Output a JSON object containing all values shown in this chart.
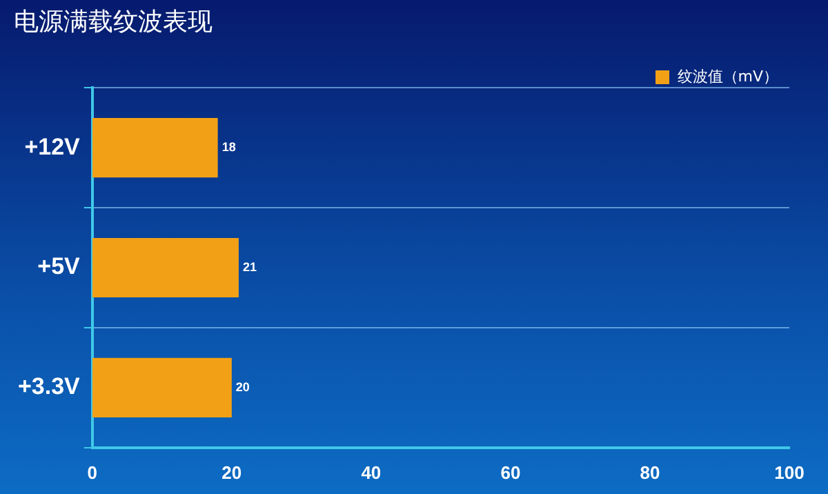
{
  "chart_data": {
    "type": "bar",
    "title": "电源满载纹波表现",
    "orientation": "horizontal",
    "categories": [
      "+12V",
      "+5V",
      "+3.3V"
    ],
    "series": [
      {
        "name": "纹波值（mV）",
        "color": "#f2a116",
        "values": [
          18,
          21,
          20
        ]
      }
    ],
    "xlim": [
      0,
      100
    ],
    "xticks": [
      0,
      20,
      40,
      60,
      80,
      100
    ],
    "grid": "y",
    "legend": "top right",
    "data_labels": true
  }
}
